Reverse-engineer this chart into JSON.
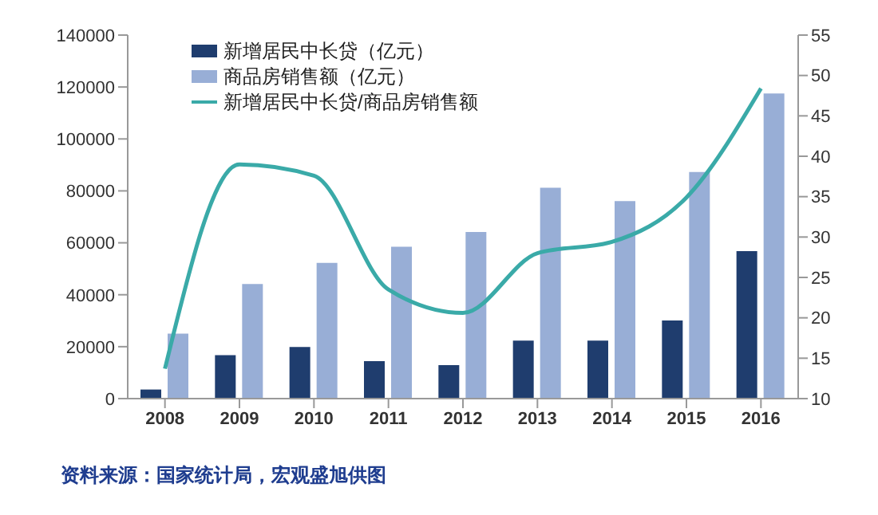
{
  "chart_data": {
    "type": "bar",
    "categories": [
      "2008",
      "2009",
      "2010",
      "2011",
      "2012",
      "2013",
      "2014",
      "2015",
      "2016"
    ],
    "series": [
      {
        "name": "新增居民中长贷（亿元）",
        "color": "#1f3d6e",
        "values": [
          3500,
          16700,
          19900,
          14400,
          12900,
          22300,
          22300,
          30100,
          56800
        ]
      },
      {
        "name": "商品房销售额（亿元）",
        "color": "#98aed6",
        "values": [
          25000,
          44100,
          52300,
          58500,
          64200,
          81200,
          76100,
          87300,
          117500
        ]
      },
      {
        "name": "新增居民中长贷/商品房销售额",
        "type": "line",
        "axis": "y2",
        "color": "#3aaaa8",
        "values": [
          13.7,
          39,
          37.6,
          23.5,
          20.6,
          28,
          29.4,
          34.9,
          48.4
        ]
      }
    ],
    "ylim": [
      0,
      140000
    ],
    "yticks": [
      0,
      20000,
      40000,
      60000,
      80000,
      100000,
      120000,
      140000
    ],
    "y2lim": [
      10,
      55
    ],
    "y2ticks": [
      10,
      15,
      20,
      25,
      30,
      35,
      40,
      45,
      50,
      55
    ],
    "grid": false,
    "legend": "top left",
    "marker": "none",
    "annotations": [
      "资料来源：国家统计局，宏观盛旭供图"
    ]
  }
}
